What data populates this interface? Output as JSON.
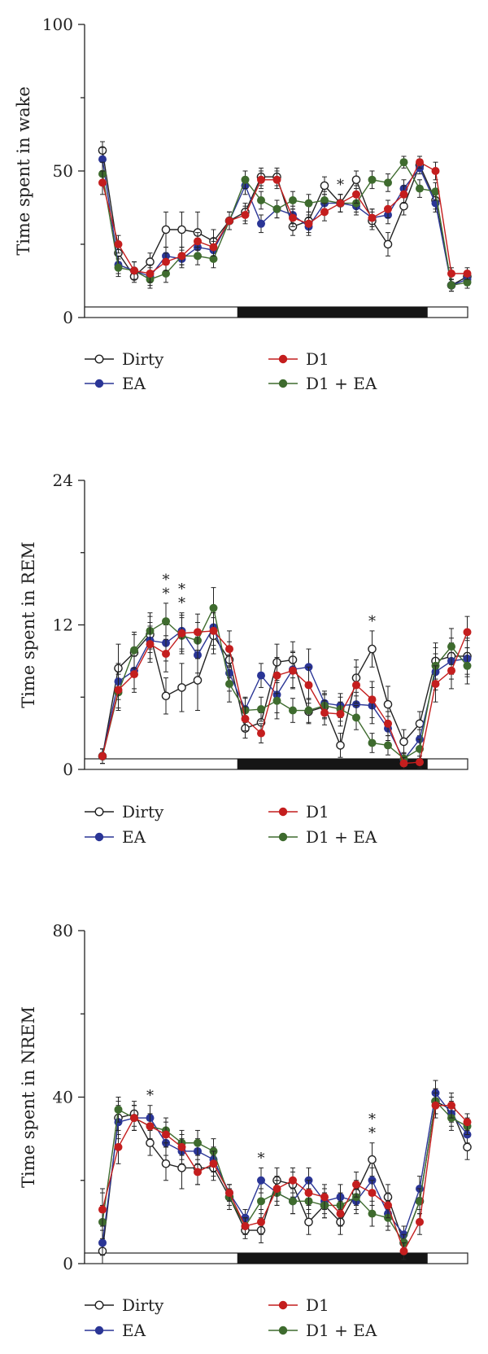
{
  "colors": {
    "Dirty": "#222222",
    "D1": "#c41e1e",
    "EA": "#2a3596",
    "D1 + EA": "#3e6b2e",
    "dark_bar": "#151515",
    "light_bar": "#ffffff"
  },
  "legend": {
    "dirty": "Dirty",
    "d1": "D1",
    "ea": "EA",
    "d1ea": "D1 + EA"
  },
  "chart_data": [
    {
      "type": "line",
      "ylabel": "Time spent in wake",
      "xlabel": "",
      "ylim": [
        0,
        100
      ],
      "yticks": [
        0,
        50,
        100
      ],
      "x": [
        1,
        2,
        3,
        4,
        5,
        6,
        7,
        8,
        9,
        10,
        11,
        12,
        13,
        14,
        15,
        16,
        17,
        18,
        19,
        20,
        21,
        22,
        23,
        24
      ],
      "light_dark": [
        "light",
        "light",
        "light",
        "light",
        "light",
        "light",
        "light",
        "light",
        "light",
        "dark",
        "dark",
        "dark",
        "dark",
        "dark",
        "dark",
        "dark",
        "dark",
        "dark",
        "dark",
        "dark",
        "dark",
        "light",
        "light",
        "light"
      ],
      "series": [
        {
          "name": "Dirty",
          "marker": "open",
          "values": [
            57,
            22,
            14,
            19,
            30,
            30,
            29,
            26,
            33,
            36,
            48,
            48,
            31,
            33,
            45,
            39,
            47,
            33,
            25,
            38,
            52,
            40,
            11,
            14
          ],
          "error": [
            3,
            3,
            2,
            3,
            6,
            6,
            7,
            4,
            3,
            3,
            3,
            3,
            3,
            3,
            3,
            3,
            3,
            3,
            4,
            3,
            2,
            3,
            2,
            2
          ]
        },
        {
          "name": "D1",
          "marker": "filled",
          "values": [
            46,
            25,
            16,
            15,
            19,
            21,
            26,
            24,
            33,
            35,
            47,
            47,
            34,
            32,
            36,
            39,
            42,
            34,
            37,
            42,
            53,
            50,
            15,
            15
          ],
          "error": [
            4,
            3,
            3,
            3,
            3,
            3,
            3,
            3,
            3,
            3,
            3,
            3,
            3,
            3,
            3,
            3,
            3,
            3,
            3,
            3,
            2,
            3,
            2,
            2
          ]
        },
        {
          "name": "EA",
          "marker": "filled",
          "values": [
            54,
            18,
            16,
            14,
            21,
            20,
            24,
            23,
            33,
            45,
            32,
            37,
            35,
            31,
            39,
            39,
            38,
            34,
            35,
            44,
            51,
            39,
            11,
            13
          ],
          "error": [
            4,
            3,
            3,
            3,
            3,
            3,
            3,
            3,
            3,
            3,
            3,
            3,
            3,
            3,
            3,
            3,
            3,
            3,
            3,
            3,
            2,
            3,
            2,
            2
          ]
        },
        {
          "name": "D1 + EA",
          "marker": "filled",
          "values": [
            49,
            17,
            16,
            13,
            15,
            21,
            21,
            20,
            33,
            47,
            40,
            37,
            40,
            39,
            40,
            39,
            39,
            47,
            46,
            53,
            44,
            43,
            11,
            12
          ],
          "error": [
            4,
            3,
            3,
            3,
            3,
            3,
            3,
            3,
            3,
            3,
            3,
            3,
            3,
            3,
            3,
            3,
            3,
            3,
            3,
            2,
            3,
            3,
            2,
            2
          ]
        }
      ],
      "annotations": [
        {
          "x": 16,
          "value": 47,
          "text": "*"
        }
      ]
    },
    {
      "type": "line",
      "ylabel": "Time spent in REM",
      "xlabel": "",
      "ylim": [
        0,
        24
      ],
      "yticks": [
        0,
        12,
        24
      ],
      "x": [
        1,
        2,
        3,
        4,
        5,
        6,
        7,
        8,
        9,
        10,
        11,
        12,
        13,
        14,
        15,
        16,
        17,
        18,
        19,
        20,
        21,
        22,
        23,
        24
      ],
      "light_dark": [
        "light",
        "light",
        "light",
        "light",
        "light",
        "light",
        "light",
        "light",
        "light",
        "dark",
        "dark",
        "dark",
        "dark",
        "dark",
        "dark",
        "dark",
        "dark",
        "dark",
        "dark",
        "dark",
        "dark",
        "light",
        "light",
        "light"
      ],
      "series": [
        {
          "name": "Dirty",
          "marker": "open",
          "values": [
            1.1,
            8.4,
            9.7,
            11.2,
            6.1,
            6.8,
            7.4,
            11.1,
            9.1,
            3.4,
            3.9,
            8.9,
            9.1,
            4.8,
            5.2,
            2.0,
            7.6,
            10.0,
            5.4,
            2.3,
            3.8,
            9.0,
            9.4,
            9.4
          ],
          "error": [
            0.6,
            2.0,
            1.5,
            1.5,
            1.5,
            2.0,
            2.5,
            1.5,
            1.5,
            0.8,
            0.8,
            1.5,
            1.5,
            1.0,
            1.0,
            1.0,
            1.5,
            1.5,
            1.5,
            1.0,
            1.0,
            1.5,
            1.5,
            1.5
          ]
        },
        {
          "name": "D1",
          "marker": "filled",
          "values": [
            1.1,
            6.6,
            7.9,
            10.4,
            9.6,
            11.3,
            11.4,
            11.5,
            10.0,
            4.2,
            3.0,
            7.8,
            8.2,
            7.0,
            4.7,
            4.6,
            7.0,
            5.8,
            3.8,
            0.5,
            0.6,
            7.1,
            8.2,
            11.4
          ],
          "error": [
            0.6,
            1.5,
            1.5,
            1.5,
            1.5,
            1.5,
            1.5,
            1.5,
            1.5,
            1.0,
            0.8,
            1.5,
            1.5,
            1.5,
            1.0,
            1.0,
            1.5,
            1.5,
            1.0,
            0.5,
            0.5,
            1.5,
            1.5,
            1.3
          ]
        },
        {
          "name": "EA",
          "marker": "filled",
          "values": [
            1.1,
            7.3,
            8.2,
            10.7,
            10.5,
            11.5,
            9.5,
            11.8,
            8.0,
            5.0,
            7.8,
            6.2,
            8.3,
            8.5,
            5.5,
            5.3,
            5.4,
            5.3,
            3.4,
            0.8,
            2.5,
            8.1,
            9.0,
            9.2
          ],
          "error": [
            0.6,
            1.5,
            1.5,
            1.5,
            1.5,
            1.5,
            1.5,
            1.5,
            1.5,
            1.0,
            1.0,
            1.5,
            1.5,
            1.5,
            1.0,
            1.0,
            1.0,
            1.5,
            1.0,
            0.5,
            0.8,
            1.5,
            1.5,
            1.5
          ]
        },
        {
          "name": "D1 + EA",
          "marker": "filled",
          "values": [
            1.1,
            6.4,
            9.9,
            11.5,
            12.3,
            11.1,
            10.7,
            13.4,
            7.1,
            4.9,
            5.0,
            5.7,
            4.9,
            4.9,
            5.3,
            5.0,
            4.3,
            2.2,
            2.0,
            0.9,
            1.7,
            8.6,
            10.2,
            8.6
          ],
          "error": [
            0.6,
            1.5,
            1.5,
            1.5,
            1.5,
            1.5,
            1.5,
            1.7,
            1.5,
            1.0,
            1.0,
            1.5,
            1.0,
            1.0,
            1.0,
            1.0,
            1.0,
            0.8,
            0.8,
            0.5,
            0.8,
            1.5,
            1.5,
            1.5
          ]
        }
      ],
      "annotations": [
        {
          "x": 5,
          "value": 12.3,
          "text": "*"
        },
        {
          "x": 5,
          "value": 12.3,
          "text": "*"
        },
        {
          "x": 6,
          "value": 11.5,
          "text": "*"
        },
        {
          "x": 6,
          "value": 11.5,
          "text": "*"
        },
        {
          "x": 18,
          "value": 10.0,
          "text": "*"
        }
      ]
    },
    {
      "type": "line",
      "ylabel": "Time spent in NREM",
      "xlabel": "",
      "ylim": [
        0,
        80
      ],
      "yticks": [
        0,
        40,
        80
      ],
      "x": [
        1,
        2,
        3,
        4,
        5,
        6,
        7,
        8,
        9,
        10,
        11,
        12,
        13,
        14,
        15,
        16,
        17,
        18,
        19,
        20,
        21,
        22,
        23,
        24
      ],
      "light_dark": [
        "light",
        "light",
        "light",
        "light",
        "light",
        "light",
        "light",
        "light",
        "light",
        "dark",
        "dark",
        "dark",
        "dark",
        "dark",
        "dark",
        "dark",
        "dark",
        "dark",
        "dark",
        "dark",
        "dark",
        "light",
        "light",
        "light"
      ],
      "series": [
        {
          "name": "Dirty",
          "marker": "open",
          "values": [
            3,
            35,
            36,
            29,
            24,
            23,
            23,
            23,
            16,
            8,
            8,
            20,
            19,
            10,
            14,
            10,
            17,
            25,
            16,
            5,
            15,
            39,
            37,
            28
          ],
          "error": [
            15,
            4,
            3,
            3,
            4,
            5,
            4,
            3,
            3,
            2,
            3,
            3,
            3,
            3,
            3,
            3,
            3,
            4,
            3,
            2,
            3,
            3,
            3,
            3
          ]
        },
        {
          "name": "D1",
          "marker": "filled",
          "values": [
            13,
            28,
            35,
            33,
            31,
            28,
            22,
            24,
            17,
            9,
            10,
            18,
            20,
            17,
            16,
            12,
            19,
            17,
            14,
            3,
            10,
            38,
            38,
            34
          ],
          "error": [
            4,
            4,
            3,
            3,
            3,
            3,
            3,
            3,
            2,
            2,
            3,
            3,
            3,
            3,
            3,
            3,
            3,
            3,
            3,
            2,
            3,
            3,
            3,
            2
          ]
        },
        {
          "name": "EA",
          "marker": "filled",
          "values": [
            5,
            34,
            35,
            35,
            29,
            27,
            27,
            25,
            17,
            11,
            20,
            17,
            15,
            20,
            15,
            16,
            15,
            20,
            12,
            7,
            18,
            41,
            36,
            31
          ],
          "error": [
            3,
            4,
            3,
            3,
            3,
            3,
            3,
            3,
            2,
            2,
            3,
            3,
            3,
            3,
            3,
            3,
            3,
            3,
            3,
            2,
            3,
            3,
            3,
            2
          ]
        },
        {
          "name": "D1 + EA",
          "marker": "filled",
          "values": [
            10,
            37,
            35,
            33,
            32,
            29,
            29,
            27,
            16,
            9,
            15,
            17,
            15,
            15,
            14,
            14,
            16,
            12,
            11,
            5,
            15,
            39,
            35,
            33
          ],
          "error": [
            4,
            3,
            3,
            3,
            3,
            3,
            3,
            3,
            2,
            2,
            3,
            3,
            3,
            3,
            3,
            3,
            3,
            3,
            3,
            2,
            3,
            3,
            3,
            2
          ]
        }
      ],
      "annotations": [
        {
          "x": 4,
          "value": 36,
          "text": "*"
        },
        {
          "x": 11,
          "value": 20,
          "text": "*"
        },
        {
          "x": 18,
          "value": 25,
          "text": "*"
        },
        {
          "x": 18,
          "value": 25,
          "text": "*"
        }
      ]
    }
  ]
}
